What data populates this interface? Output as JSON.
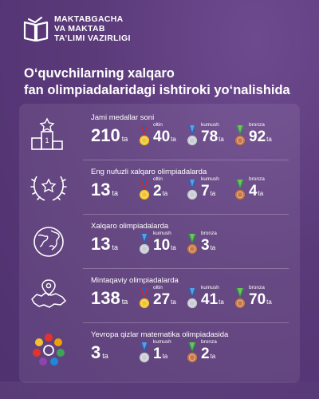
{
  "header": {
    "logo_lines": [
      "MAKTABGACHA",
      "VA MAKTAB",
      "TA’LIMI VAZIRLIGI"
    ],
    "title_lines": [
      "O‘quvchilarning xalqaro",
      "fan olimpiadalaridagi ishtiroki yo‘nalishida"
    ]
  },
  "colors": {
    "background": "#5b3a7a",
    "gold": "#f2c230",
    "silver": "#c9cbd4",
    "bronze": "#c8794a"
  },
  "rows": [
    {
      "label": "Jami medallar soni",
      "total": "210",
      "unit": "ta",
      "icon": "podium-star-icon",
      "medals": [
        {
          "type": "oltin",
          "count": "40",
          "unit": "ta"
        },
        {
          "type": "kumush",
          "count": "78",
          "unit": "ta"
        },
        {
          "type": "bronza",
          "count": "92",
          "unit": "ta"
        }
      ]
    },
    {
      "label": "Eng nufuzli xalqaro olimpiadalarda",
      "total": "13",
      "unit": "ta",
      "icon": "laurel-star-icon",
      "medals": [
        {
          "type": "oltin",
          "count": "2",
          "unit": "ta"
        },
        {
          "type": "kumush",
          "count": "7",
          "unit": "ta"
        },
        {
          "type": "bronza",
          "count": "4",
          "unit": "ta"
        }
      ]
    },
    {
      "label": "Xalqaro olimpiadalarda",
      "total": "13",
      "unit": "ta",
      "icon": "globe-icon",
      "medals": [
        {
          "type": "kumush",
          "count": "10",
          "unit": "ta"
        },
        {
          "type": "bronza",
          "count": "3",
          "unit": "ta"
        }
      ]
    },
    {
      "label": "Mintaqaviy olimpiadalarda",
      "total": "138",
      "unit": "ta",
      "icon": "map-pin-icon",
      "medals": [
        {
          "type": "oltin",
          "count": "27",
          "unit": "ta"
        },
        {
          "type": "kumush",
          "count": "41",
          "unit": "ta"
        },
        {
          "type": "bronza",
          "count": "70",
          "unit": "ta"
        }
      ]
    },
    {
      "label": "Yevropa qizlar matematika olimpiadasida",
      "total": "3",
      "unit": "ta",
      "icon": "egmo-logo-icon",
      "medals": [
        {
          "type": "kumush",
          "count": "1",
          "unit": "ta"
        },
        {
          "type": "bronza",
          "count": "2",
          "unit": "ta"
        }
      ]
    }
  ]
}
